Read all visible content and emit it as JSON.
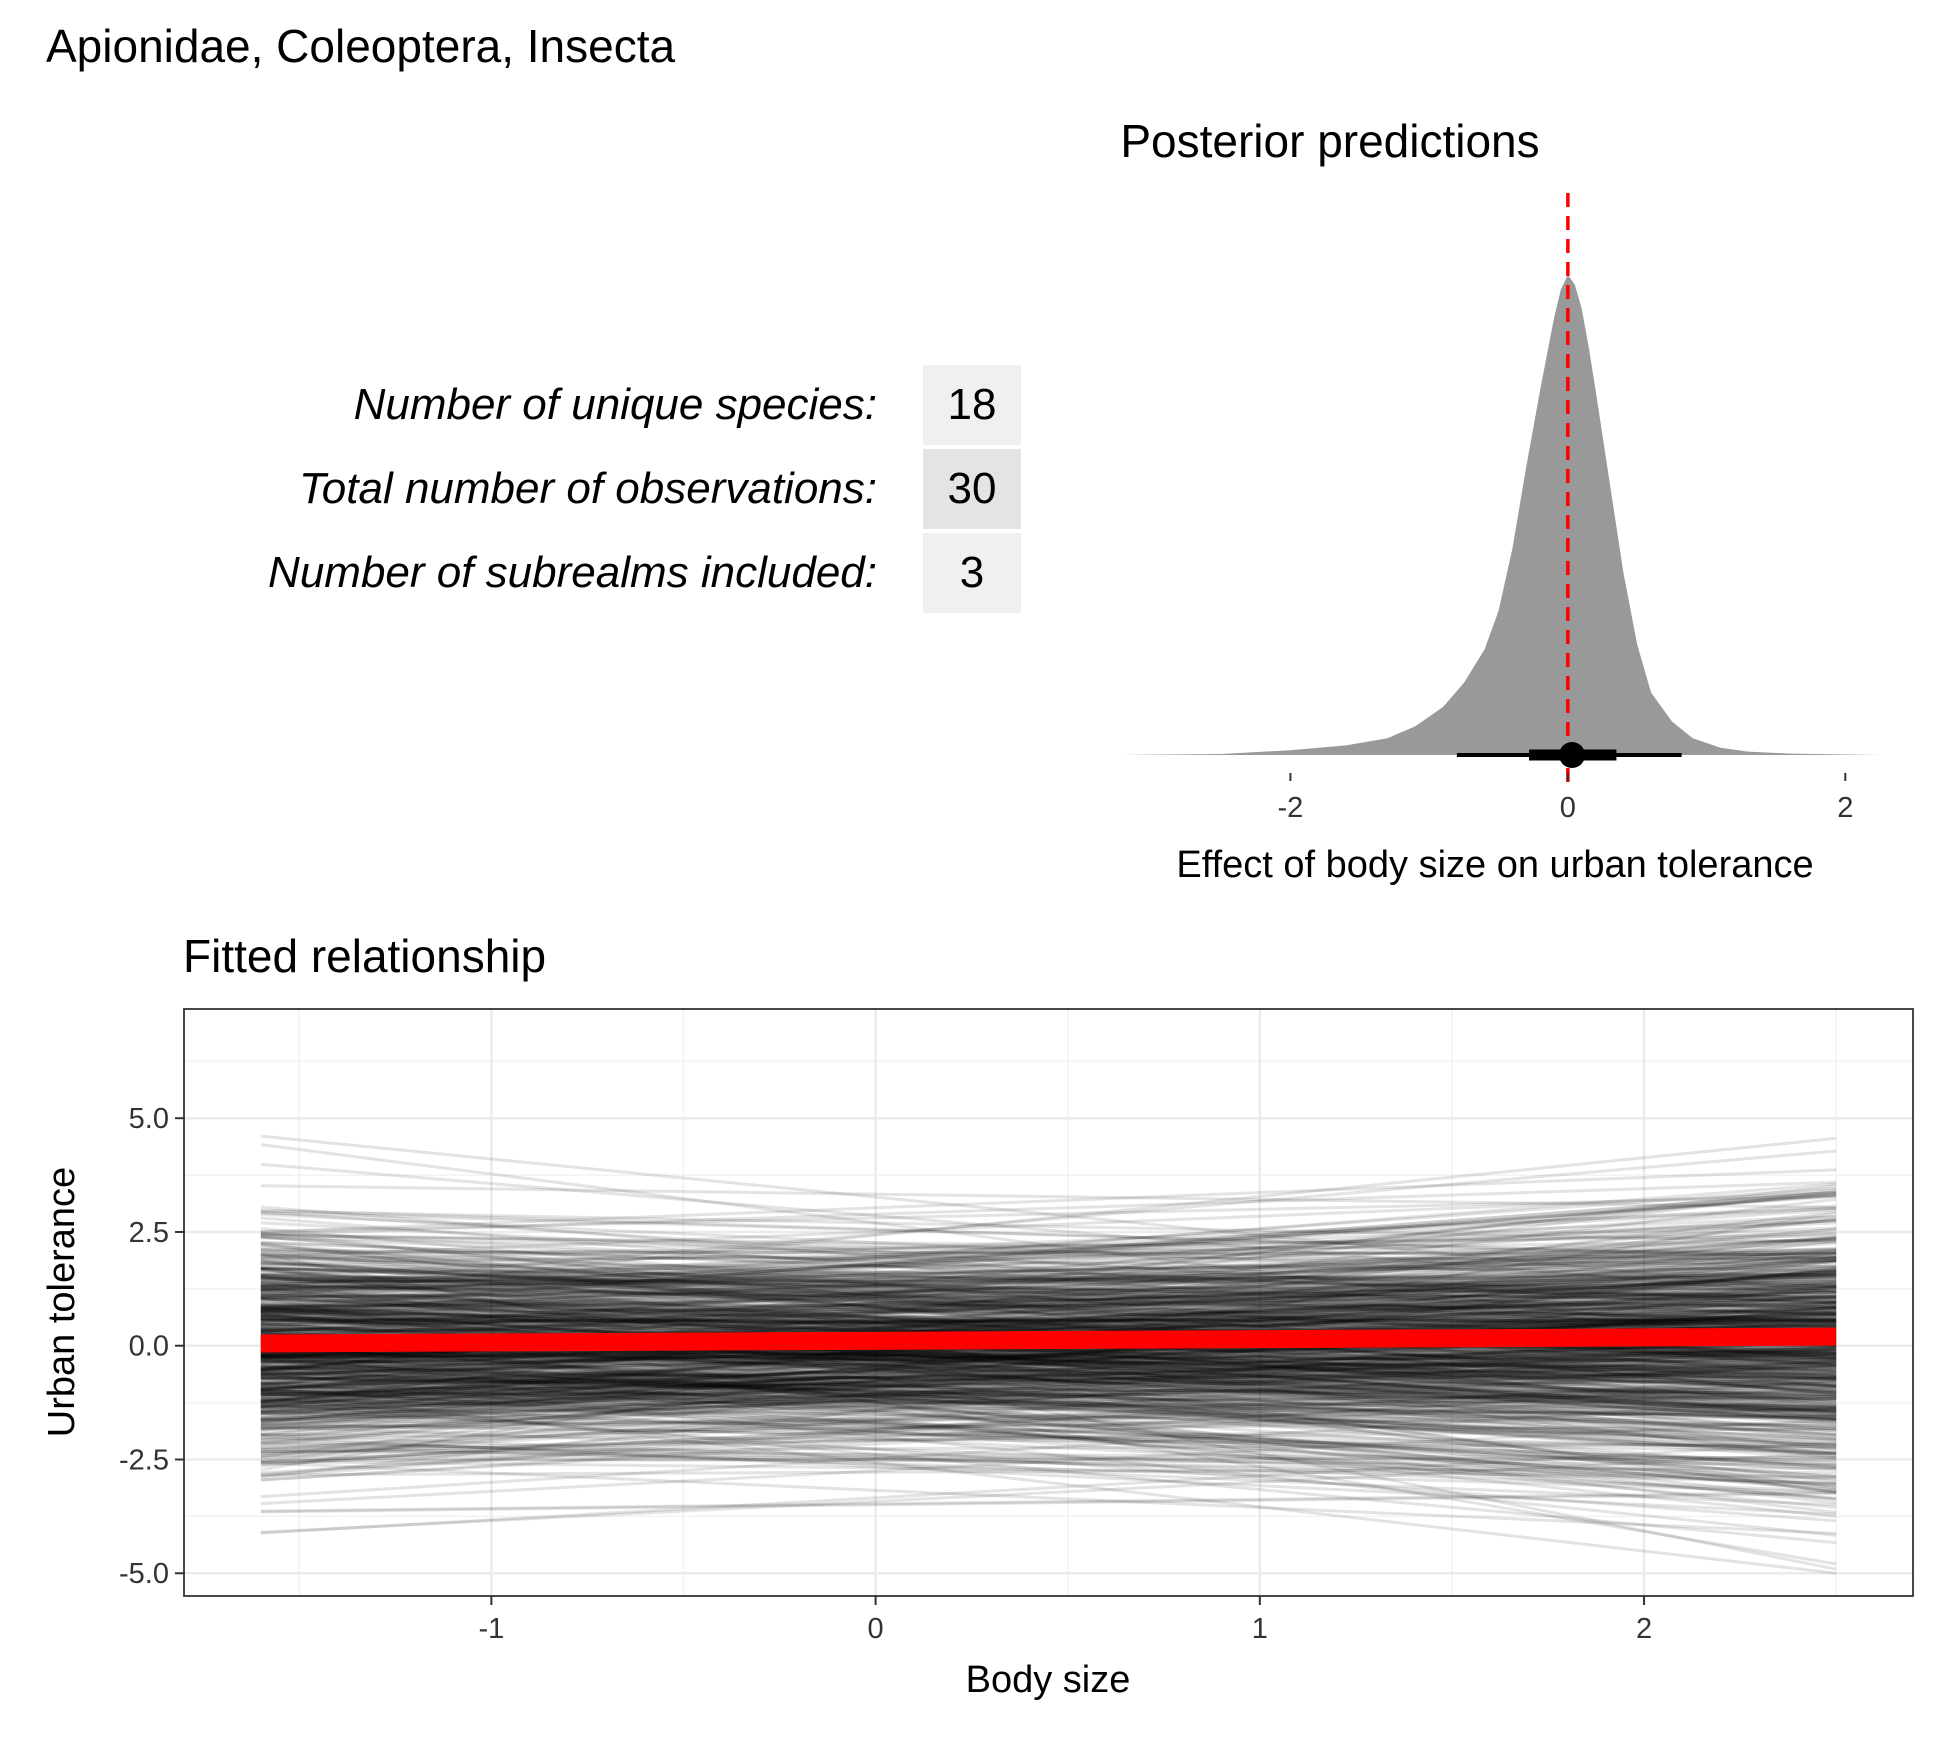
{
  "title": "Apionidae, Coleoptera, Insecta",
  "stats": [
    {
      "label": "Number of unique species:",
      "value": "18",
      "color": "#f0f0f0"
    },
    {
      "label": "Total number of observations:",
      "value": "30",
      "color": "#e4e4e4"
    },
    {
      "label": "Number of subrealms included:",
      "value": "3",
      "color": "#f0f0f0"
    }
  ],
  "chart_data": [
    {
      "type": "area",
      "title": "Posterior predictions",
      "xlabel": "Effect of body size on urban tolerance",
      "ylabel": "",
      "xlim": [
        -3.25,
        2.25
      ],
      "x_ticks": [
        "-2",
        "0",
        "2"
      ],
      "reference_line": {
        "x": 0,
        "color": "#ff0000",
        "style": "dashed"
      },
      "density": {
        "x": [
          -3.2,
          -2.5,
          -2.0,
          -1.6,
          -1.3,
          -1.1,
          -0.9,
          -0.75,
          -0.6,
          -0.5,
          -0.4,
          -0.3,
          -0.2,
          -0.1,
          -0.05,
          0.0,
          0.05,
          0.1,
          0.15,
          0.2,
          0.3,
          0.4,
          0.5,
          0.6,
          0.75,
          0.9,
          1.1,
          1.3,
          1.6,
          2.0,
          2.25
        ],
        "y": [
          0.0,
          0.002,
          0.01,
          0.02,
          0.035,
          0.06,
          0.1,
          0.15,
          0.22,
          0.3,
          0.43,
          0.6,
          0.76,
          0.91,
          0.97,
          1.0,
          0.98,
          0.93,
          0.85,
          0.76,
          0.57,
          0.38,
          0.23,
          0.13,
          0.07,
          0.035,
          0.015,
          0.007,
          0.003,
          0.001,
          0.0
        ],
        "fill": "#999999"
      },
      "point_interval": {
        "point": 0.03,
        "inner": [
          -0.28,
          0.35
        ],
        "outer": [
          -0.8,
          0.82
        ]
      }
    },
    {
      "type": "line",
      "title": "Fitted relationship",
      "xlabel": "Body size",
      "ylabel": "Urban tolerance",
      "xlim": [
        -1.8,
        2.7
      ],
      "ylim": [
        -5.5,
        7.4
      ],
      "x_ticks": [
        "-1",
        "0",
        "1",
        "2"
      ],
      "y_ticks": [
        "-5.0",
        "-2.5",
        "0.0",
        "2.5",
        "5.0"
      ],
      "x_range": [
        -1.6,
        2.5
      ],
      "posterior_draws": {
        "count": 700,
        "intercept_sd": 1.2,
        "slope_sd": 0.42,
        "color": "#000000",
        "opacity": 0.11
      },
      "fitted_line": {
        "x": [
          -1.6,
          2.5
        ],
        "y": [
          0.05,
          0.2
        ],
        "color": "#ff0000"
      }
    }
  ]
}
